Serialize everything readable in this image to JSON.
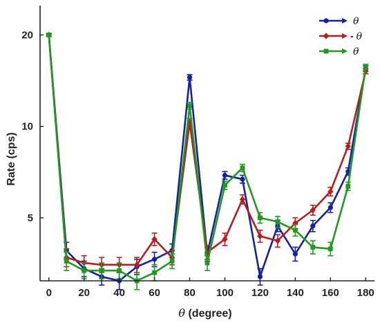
{
  "chart_data": {
    "type": "line",
    "title": "",
    "xlabel_symbol": "θ",
    "xlabel_rest": " (degree)",
    "ylabel": "Rate (cps)",
    "x": [
      0,
      10,
      20,
      30,
      40,
      50,
      60,
      70,
      80,
      90,
      100,
      110,
      120,
      130,
      140,
      150,
      160,
      170,
      180
    ],
    "xlim": [
      -5,
      185
    ],
    "ylim": [
      3.1,
      25
    ],
    "yscale": "log",
    "xticks": [
      0,
      20,
      40,
      60,
      80,
      100,
      120,
      140,
      160,
      180
    ],
    "yticks": [
      5,
      10,
      20
    ],
    "legend_position": "top-right",
    "series": [
      {
        "name": "θ",
        "name_prefix": "",
        "color": "#1420a8",
        "marker": "circle",
        "values": [
          20,
          3.9,
          3.4,
          3.2,
          3.1,
          3.45,
          3.65,
          3.9,
          14.5,
          3.8,
          6.9,
          6.7,
          3.2,
          4.7,
          3.8,
          4.7,
          5.4,
          7.1,
          15.5
        ],
        "errors": [
          0.2,
          0.25,
          0.2,
          0.2,
          0.2,
          0.2,
          0.2,
          0.2,
          0.3,
          0.2,
          0.2,
          0.2,
          0.2,
          0.2,
          0.2,
          0.2,
          0.2,
          0.2,
          0.3
        ]
      },
      {
        "name": "θ",
        "name_prefix": "-",
        "color": "#b81c1c",
        "marker": "diamond",
        "values": [
          20,
          3.7,
          3.55,
          3.5,
          3.5,
          3.5,
          4.25,
          3.7,
          10.3,
          3.85,
          4.25,
          5.75,
          4.35,
          4.2,
          4.8,
          5.3,
          6.1,
          8.6,
          15.2
        ],
        "errors": [
          0.2,
          0.25,
          0.2,
          0.2,
          0.2,
          0.2,
          0.2,
          0.2,
          0.3,
          0.2,
          0.2,
          0.2,
          0.2,
          0.2,
          0.2,
          0.2,
          0.2,
          0.2,
          0.3
        ]
      },
      {
        "name": "θ",
        "name_prefix": "",
        "color": "#1e9a1e",
        "marker": "square",
        "values": [
          20,
          3.6,
          3.35,
          3.35,
          3.35,
          3.1,
          3.3,
          3.6,
          11.7,
          3.55,
          6.4,
          7.3,
          5.0,
          4.85,
          4.55,
          4.0,
          3.95,
          6.35,
          15.7
        ],
        "errors": [
          0.2,
          0.25,
          0.2,
          0.2,
          0.2,
          0.2,
          0.2,
          0.2,
          0.3,
          0.2,
          0.2,
          0.2,
          0.2,
          0.2,
          0.2,
          0.2,
          0.2,
          0.2,
          0.3
        ]
      }
    ]
  }
}
